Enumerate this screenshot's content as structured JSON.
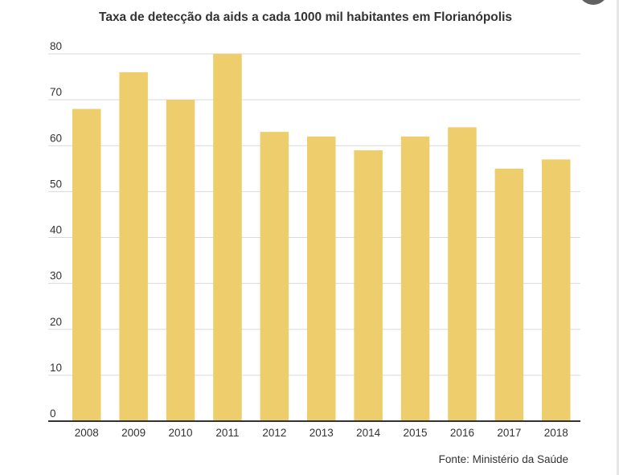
{
  "chart_data": {
    "type": "bar",
    "title": "Taxa de detecção da aids a cada 1000 mil habitantes em Florianópolis",
    "categories": [
      "2008",
      "2009",
      "2010",
      "2011",
      "2012",
      "2013",
      "2014",
      "2015",
      "2016",
      "2017",
      "2018"
    ],
    "values": [
      68,
      76,
      70,
      80,
      63,
      62,
      59,
      62,
      64,
      55,
      57
    ],
    "ylim": [
      0,
      80
    ],
    "yticks": [
      0,
      10,
      20,
      30,
      40,
      50,
      60,
      70,
      80
    ],
    "xlabel": "",
    "ylabel": "",
    "grid": true,
    "legend": "none",
    "bar_color": "#eecd6c",
    "source": "Fonte: Ministério da Saúde"
  }
}
